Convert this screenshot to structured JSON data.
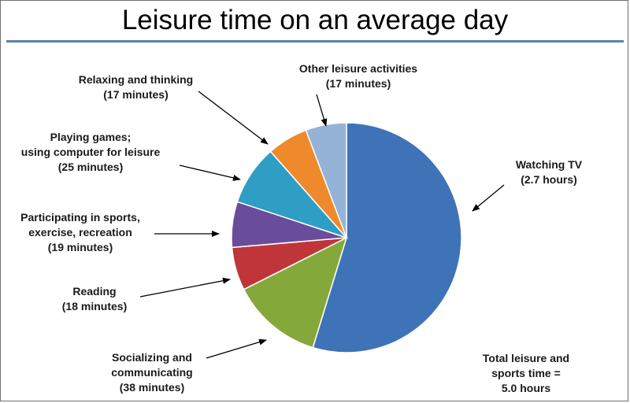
{
  "title": "Leisure time on an average day",
  "colors": {
    "rule": "#5a7fb5",
    "slices": [
      "#3f73b8",
      "#85a83b",
      "#c0353a",
      "#6a4d9a",
      "#2f9ec4",
      "#ee8a2b",
      "#95b3d7"
    ]
  },
  "chart_data": {
    "type": "pie",
    "title": "Leisure time on an average day",
    "unit": "minutes",
    "slices": [
      {
        "label": "Watching TV",
        "value": 162,
        "display": "(2.7 hours)"
      },
      {
        "label": "Socializing and communicating",
        "value": 38,
        "display": "(38 minutes)"
      },
      {
        "label": "Reading",
        "value": 18,
        "display": "(18 minutes)"
      },
      {
        "label": "Participating in sports, exercise, recreation",
        "value": 19,
        "display": "(19 minutes)"
      },
      {
        "label": "Playing games; using computer for leisure",
        "value": 25,
        "display": "(25 minutes)"
      },
      {
        "label": "Relaxing and thinking",
        "value": 17,
        "display": "(17 minutes)"
      },
      {
        "label": "Other leisure activities",
        "value": 17,
        "display": "(17 minutes)"
      }
    ]
  },
  "labels": {
    "watching_tv": "Watching TV\n(2.7 hours)",
    "socializing": "Socializing and\ncommunicating\n(38 minutes)",
    "reading": "Reading\n(18 minutes)",
    "sports": "Participating in sports,\nexercise, recreation\n(19 minutes)",
    "games": "Playing games;\nusing computer for leisure\n(25 minutes)",
    "relaxing": "Relaxing and thinking\n(17 minutes)",
    "other": "Other leisure activities\n(17 minutes)"
  },
  "total_note": "Total leisure and\nsports time =\n5.0 hours"
}
